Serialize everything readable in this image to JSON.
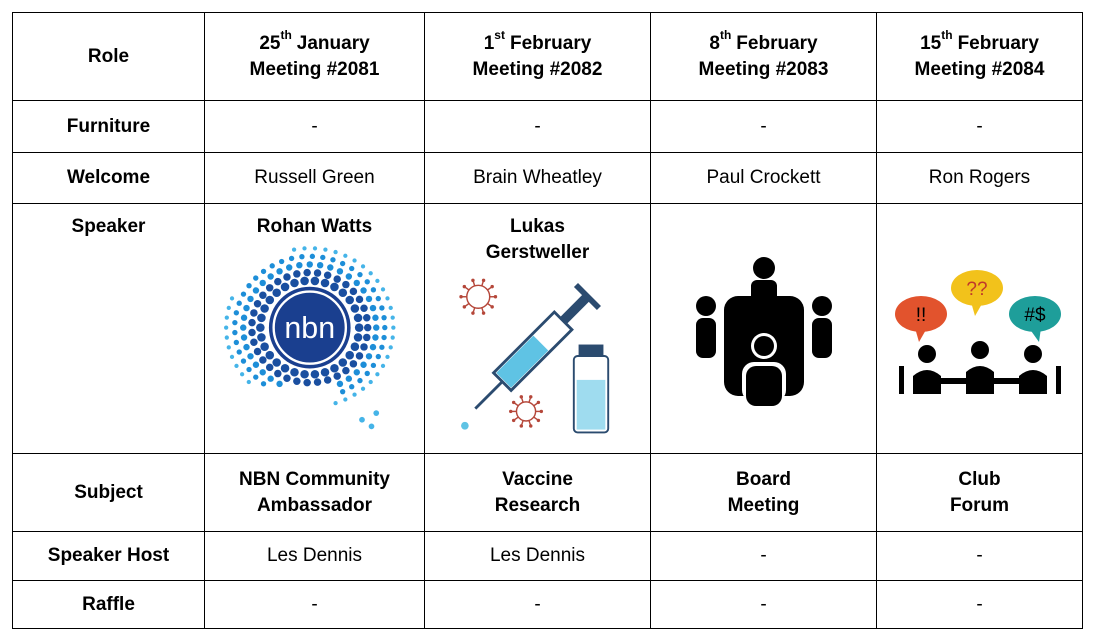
{
  "table": {
    "header": {
      "role": "Role",
      "meetings": [
        {
          "day": "25",
          "suffix": "th",
          "month": "January",
          "meeting": "Meeting #2081"
        },
        {
          "day": "1",
          "suffix": "st",
          "month": "February",
          "meeting": "Meeting #2082"
        },
        {
          "day": "8",
          "suffix": "th",
          "month": "February",
          "meeting": "Meeting #2083"
        },
        {
          "day": "15",
          "suffix": "th",
          "month": "February",
          "meeting": "Meeting #2084"
        }
      ]
    },
    "rows": [
      {
        "role": "Furniture",
        "cells": [
          "-",
          "-",
          "-",
          "-"
        ]
      },
      {
        "role": "Welcome",
        "cells": [
          "Russell Green",
          "Brain Wheatley",
          "Paul Crockett",
          "Ron Rogers"
        ]
      },
      {
        "role": "Speaker",
        "speakers": [
          [
            "Rohan Watts"
          ],
          [
            "Lukas",
            "Gerstweller"
          ],
          [],
          []
        ],
        "images": [
          {
            "kind": "nbn-logo",
            "text": "nbn"
          },
          {
            "kind": "vaccine"
          },
          {
            "kind": "meeting"
          },
          {
            "kind": "forum",
            "bubbles": [
              "!!",
              "??",
              "#$"
            ]
          }
        ]
      },
      {
        "role": "Subject",
        "lines": [
          [
            "NBN Community",
            "Ambassador"
          ],
          [
            "Vaccine",
            "Research"
          ],
          [
            "Board",
            "Meeting"
          ],
          [
            "Club",
            "Forum"
          ]
        ]
      },
      {
        "role": "Speaker Host",
        "cells": [
          "Les Dennis",
          "Les Dennis",
          "-",
          "-"
        ]
      },
      {
        "role": "Raffle",
        "cells": [
          "-",
          "-",
          "-",
          "-"
        ]
      }
    ]
  }
}
